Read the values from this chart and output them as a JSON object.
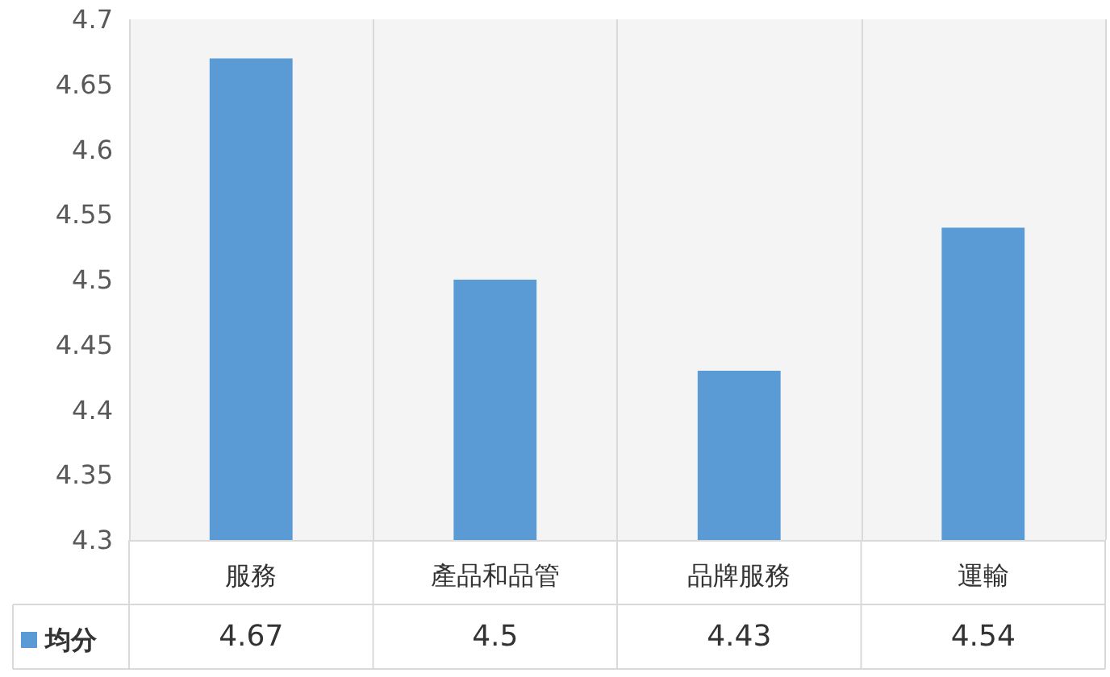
{
  "chart_data": {
    "type": "bar",
    "categories": [
      "服務",
      "產品和品管",
      "品牌服務",
      "運輸"
    ],
    "series": [
      {
        "name": "均分",
        "color": "#5b9bd5",
        "values": [
          4.67,
          4.5,
          4.43,
          4.54
        ]
      }
    ],
    "ylim": [
      4.3,
      4.7
    ],
    "yticks": [
      4.3,
      4.35,
      4.4,
      4.45,
      4.5,
      4.55,
      4.6,
      4.65,
      4.7
    ],
    "grid": "x",
    "legend": "bottom left",
    "data_labels": true
  }
}
